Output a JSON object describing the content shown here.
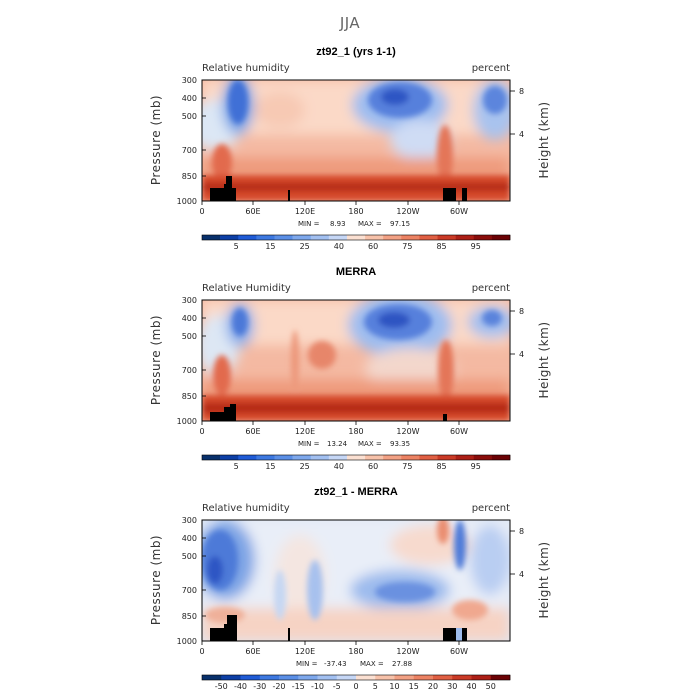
{
  "figure_title": "JJA",
  "chart_data": [
    {
      "type": "heatmap",
      "title": "zt92_1 (yrs 1-1)",
      "left_label": "Relative humidity",
      "right_label": "percent",
      "xlabel": "",
      "ylabel": "Pressure (mb)",
      "ylabel_right": "Height (km)",
      "x_ticks": [
        "0",
        "60E",
        "120E",
        "180",
        "120W",
        "60W"
      ],
      "y_ticks": [
        "300",
        "400",
        "500",
        "700",
        "850",
        "1000"
      ],
      "y_right_ticks": [
        "8",
        "4"
      ],
      "stats": {
        "min_label": "MIN =",
        "min": "8.93",
        "max_label": "MAX =",
        "max": "97.15"
      },
      "colorbar_labels": [
        "5",
        "15",
        "25",
        "40",
        "60",
        "75",
        "85",
        "95"
      ]
    },
    {
      "type": "heatmap",
      "title": "MERRA",
      "left_label": "Relative Humidity",
      "right_label": "percent",
      "xlabel": "",
      "ylabel": "Pressure (mb)",
      "ylabel_right": "Height (km)",
      "x_ticks": [
        "0",
        "60E",
        "120E",
        "180",
        "120W",
        "60W"
      ],
      "y_ticks": [
        "300",
        "400",
        "500",
        "700",
        "850",
        "1000"
      ],
      "y_right_ticks": [
        "8",
        "4"
      ],
      "stats": {
        "min_label": "MIN =",
        "min": "13.24",
        "max_label": "MAX =",
        "max": "93.35"
      },
      "colorbar_labels": [
        "5",
        "15",
        "25",
        "40",
        "60",
        "75",
        "85",
        "95"
      ]
    },
    {
      "type": "heatmap",
      "title": "zt92_1 - MERRA",
      "left_label": "Relative humidity",
      "right_label": "percent",
      "xlabel": "",
      "ylabel": "Pressure (mb)",
      "ylabel_right": "Height (km)",
      "x_ticks": [
        "0",
        "60E",
        "120E",
        "180",
        "120W",
        "60W"
      ],
      "y_ticks": [
        "300",
        "400",
        "500",
        "700",
        "850",
        "1000"
      ],
      "y_right_ticks": [
        "8",
        "4"
      ],
      "stats": {
        "min_label": "MIN =",
        "min": "-37.43",
        "max_label": "MAX =",
        "max": "27.88"
      },
      "colorbar_labels": [
        "-50",
        "-40",
        "-30",
        "-20",
        "-15",
        "-10",
        "-5",
        "0",
        "5",
        "10",
        "15",
        "20",
        "30",
        "40",
        "50"
      ]
    }
  ]
}
